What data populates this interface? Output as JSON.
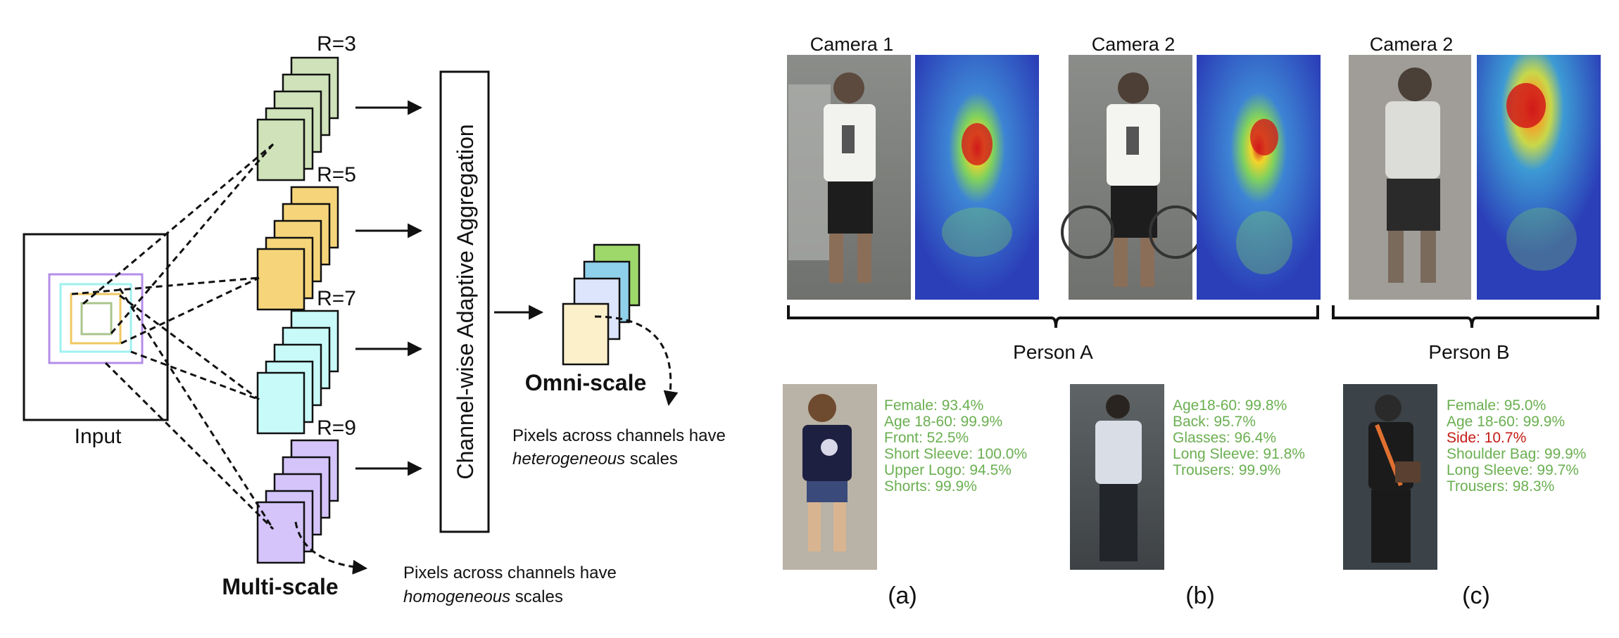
{
  "colors": {
    "green_fill": "#cfe2b9",
    "yellow_fill": "#f6d57a",
    "cyan_fill": "#c9fafa",
    "purple_fill": "#d4c4fa",
    "attr_green": "#6aaf50",
    "attr_red": "#c41b14",
    "omni_back": "#9fd86a",
    "omni_mid2": "#8fd0ea",
    "omni_mid1": "#dce5fb",
    "omni_front": "#fcf0cb",
    "heat_blue": "#2b3fb8",
    "heat_red": "#d11a1a"
  },
  "left_diagram": {
    "input_label": "Input",
    "streams": [
      {
        "label": "R=3",
        "color": "#cfe2b9"
      },
      {
        "label": "R=5",
        "color": "#f6d57a"
      },
      {
        "label": "R=7",
        "color": "#c9fafa"
      },
      {
        "label": "R=9",
        "color": "#d4c4fa"
      }
    ],
    "aggregation_label": "Channel-wise Adaptive Aggregation",
    "multi_scale_label": "Multi-scale",
    "homogeneous_note": {
      "line1": "Pixels across channels have",
      "italic": "homogeneous",
      "rest": " scales"
    },
    "omni_scale_label": "Omni-scale",
    "heterogeneous_note": {
      "line1": "Pixels across channels have",
      "italic": "heterogeneous",
      "rest": " scales"
    }
  },
  "right_panel": {
    "camera_labels": [
      "Camera 1",
      "Camera 2",
      "Camera 2"
    ],
    "person_labels": [
      "Person A",
      "Person B"
    ],
    "panels": [
      {
        "caption": "(a)",
        "attributes": [
          {
            "text": "Female: 93.4%",
            "status": "correct"
          },
          {
            "text": "Age 18-60: 99.9%",
            "status": "correct"
          },
          {
            "text": "Front: 52.5%",
            "status": "correct"
          },
          {
            "text": "Short Sleeve: 100.0%",
            "status": "correct"
          },
          {
            "text": "Upper Logo: 94.5%",
            "status": "correct"
          },
          {
            "text": "Shorts: 99.9%",
            "status": "correct"
          }
        ]
      },
      {
        "caption": "(b)",
        "attributes": [
          {
            "text": "Age18-60: 99.8%",
            "status": "correct"
          },
          {
            "text": "Back: 95.7%",
            "status": "correct"
          },
          {
            "text": "Glasses: 96.4%",
            "status": "correct"
          },
          {
            "text": "Long Sleeve: 91.8%",
            "status": "correct"
          },
          {
            "text": "Trousers: 99.9%",
            "status": "correct"
          }
        ]
      },
      {
        "caption": "(c)",
        "attributes": [
          {
            "text": "Female: 95.0%",
            "status": "correct"
          },
          {
            "text": "Age 18-60: 99.9%",
            "status": "correct"
          },
          {
            "text": "Side: 10.7%",
            "status": "wrong"
          },
          {
            "text": "Shoulder Bag: 99.9%",
            "status": "correct"
          },
          {
            "text": "Long Sleeve: 99.7%",
            "status": "correct"
          },
          {
            "text": "Trousers: 98.3%",
            "status": "correct"
          }
        ]
      }
    ]
  }
}
